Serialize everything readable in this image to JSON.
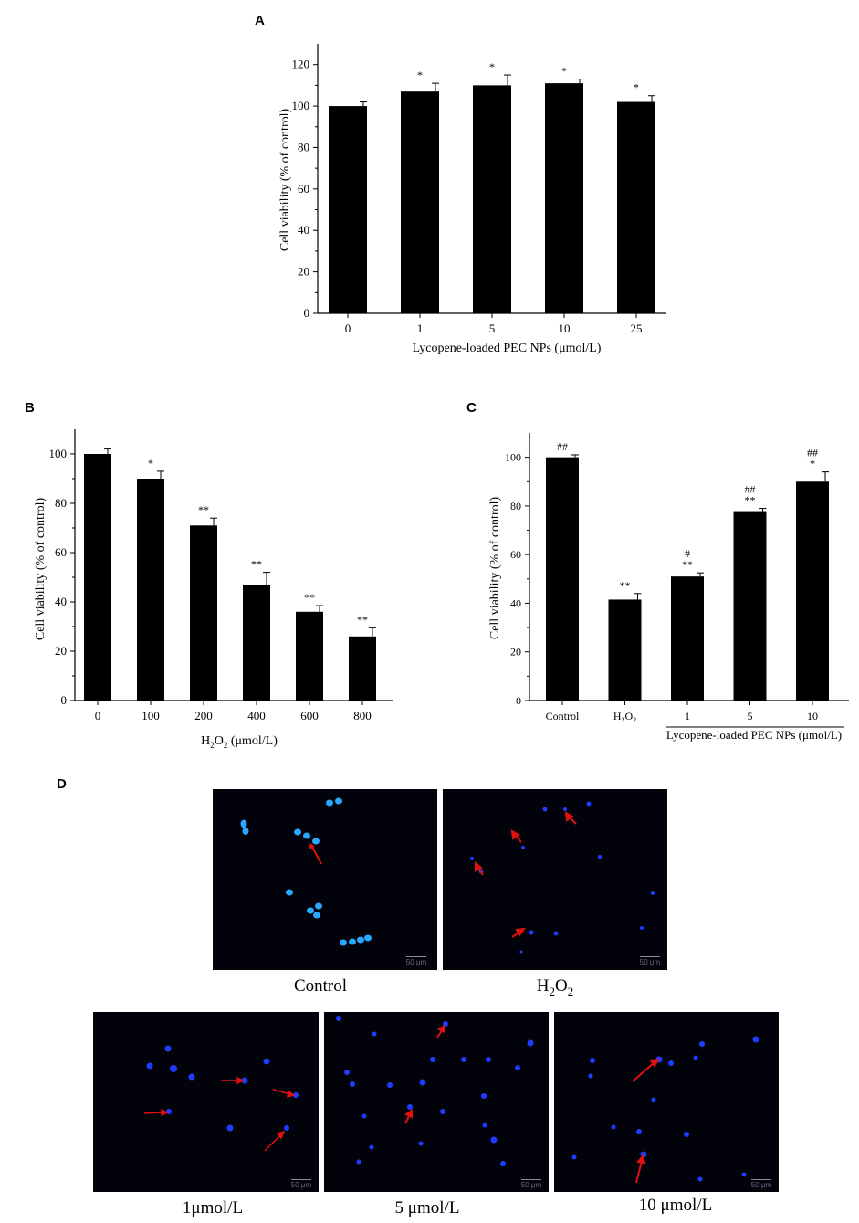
{
  "panels": {
    "a": "A",
    "b": "B",
    "c": "C",
    "d": "D"
  },
  "chart_data": [
    {
      "type": "bar",
      "categories": [
        "0",
        "1",
        "5",
        "10",
        "25"
      ],
      "values": [
        100,
        107,
        110,
        111,
        102
      ],
      "errors": [
        2,
        4,
        5,
        2,
        3
      ],
      "annotations": [
        [],
        [
          "*"
        ],
        [
          "*"
        ],
        [
          "*"
        ],
        [
          "*"
        ]
      ],
      "xlabel": "Lycopene-loaded PEC NPs (μmol/L)",
      "ylabel": "Cell viability (% of control)",
      "ylim": [
        0,
        130
      ],
      "yticks": [
        "0",
        "20",
        "40",
        "60",
        "80",
        "100",
        "120"
      ],
      "grid": false
    },
    {
      "type": "bar",
      "categories": [
        "0",
        "100",
        "200",
        "400",
        "600",
        "800"
      ],
      "values": [
        100,
        90,
        71,
        47,
        36,
        26
      ],
      "errors": [
        2,
        3,
        3,
        5,
        2.5,
        3.5
      ],
      "annotations": [
        [],
        [
          "*"
        ],
        [
          "**"
        ],
        [
          "**"
        ],
        [
          "**"
        ],
        [
          "**"
        ]
      ],
      "xlabel_main": "H",
      "xlabel_sub": "2",
      "xlabel_main2": "O",
      "xlabel_sub2": "2",
      "xlabel_rest": " (μmol/L)",
      "ylabel": "Cell viability (% of control)",
      "ylim": [
        0,
        110
      ],
      "yticks": [
        "0",
        "20",
        "40",
        "60",
        "80",
        "100"
      ],
      "grid": false
    },
    {
      "type": "bar",
      "categories": [
        "Control",
        "H2O2",
        "1",
        "5",
        "10"
      ],
      "values": [
        100,
        41.5,
        51,
        77.5,
        90
      ],
      "errors": [
        1,
        2.5,
        1.5,
        1.5,
        4
      ],
      "annotations": [
        [
          "##"
        ],
        [
          "**"
        ],
        [
          "**",
          "#"
        ],
        [
          "**",
          "##"
        ],
        [
          "*",
          "##"
        ]
      ],
      "group_label": "Lycopene-loaded PEC NPs (μmol/L)",
      "ylabel": "Cell viability (% of control)",
      "ylim": [
        0,
        110
      ],
      "yticks": [
        "0",
        "20",
        "40",
        "60",
        "80",
        "100"
      ],
      "grid": false
    }
  ],
  "micrographs": {
    "captions": [
      "Control",
      "H2O2",
      "1μmol/L",
      "5 μmol/L",
      "10 μmol/L"
    ],
    "h2o2_caption": {
      "main": "H",
      "sub": "2",
      "main2": "O",
      "sub2": "2"
    },
    "scale_label": "50 μm",
    "colors": {
      "background": "#02020a",
      "nucleus": "#1e3cff",
      "arrow": "#e01010"
    }
  }
}
